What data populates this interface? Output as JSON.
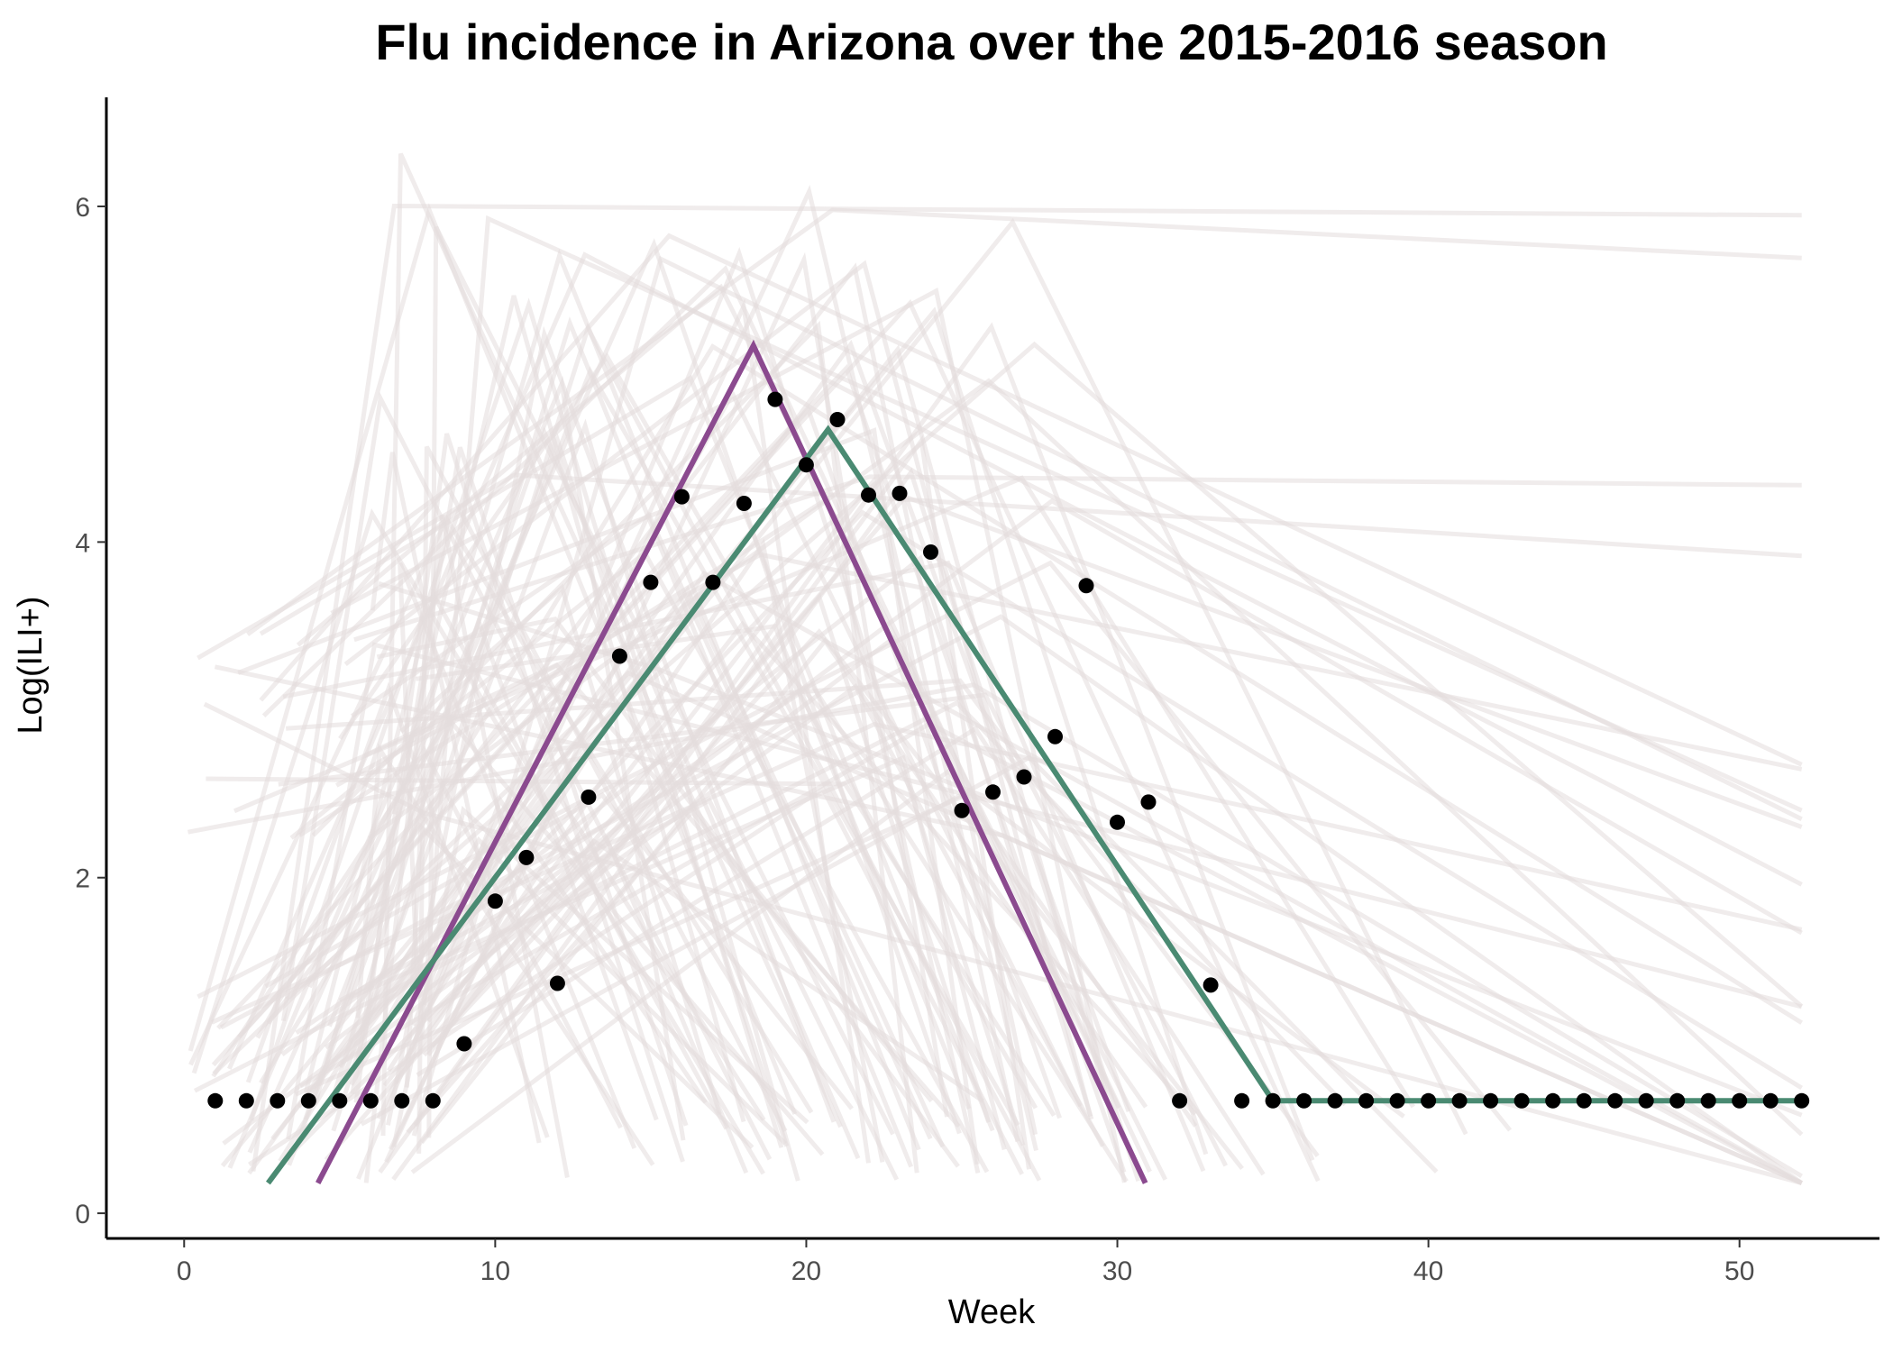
{
  "chart_data": {
    "type": "line",
    "title": "Flu incidence in Arizona over the 2015-2016 season",
    "xlabel": "Week",
    "ylabel": "Log(ILI+)",
    "xlim": [
      -2.5,
      54.5
    ],
    "ylim": [
      -0.15,
      6.65
    ],
    "x_ticks": [
      0,
      10,
      20,
      30,
      40,
      50
    ],
    "y_ticks": [
      0,
      2,
      4,
      6
    ],
    "grid": false,
    "colors": {
      "observed": "#000000",
      "fit_purple": "#8b4a8f",
      "fit_green": "#4a8a72",
      "background_curves": "#e3dcdc"
    },
    "series": [
      {
        "kind": "points",
        "x": [
          1,
          2,
          3,
          4,
          5,
          6,
          7,
          8,
          9,
          10,
          11,
          12,
          13,
          14,
          15,
          16,
          17,
          18,
          19,
          20,
          21,
          22,
          23,
          24,
          25,
          26,
          27,
          28,
          29,
          30,
          31,
          32,
          33,
          34,
          35,
          36,
          37,
          38,
          39,
          40,
          41,
          42,
          43,
          44,
          45,
          46,
          47,
          48,
          49,
          50,
          51,
          52
        ],
        "y": [
          0.67,
          0.67,
          0.67,
          0.67,
          0.67,
          0.67,
          0.67,
          0.67,
          1.01,
          1.86,
          2.12,
          1.37,
          2.48,
          3.32,
          3.76,
          4.27,
          3.76,
          4.23,
          4.85,
          4.46,
          4.73,
          4.28,
          4.29,
          3.94,
          2.4,
          2.51,
          2.6,
          2.84,
          3.74,
          2.33,
          2.45,
          0.67,
          1.36,
          0.67,
          0.67,
          0.67,
          0.67,
          0.67,
          0.67,
          0.67,
          0.67,
          0.67,
          0.67,
          0.67,
          0.67,
          0.67,
          0.67,
          0.67,
          0.67,
          0.67,
          0.67,
          0.67
        ]
      },
      {
        "kind": "line",
        "x": [
          4.3,
          18.3,
          30.9
        ],
        "y": [
          0.18,
          5.17,
          0.18
        ]
      },
      {
        "kind": "line",
        "x": [
          2.7,
          20.7,
          35.0,
          52
        ],
        "y": [
          0.18,
          4.67,
          0.67,
          0.67
        ]
      }
    ],
    "background_curves_count": 120
  }
}
